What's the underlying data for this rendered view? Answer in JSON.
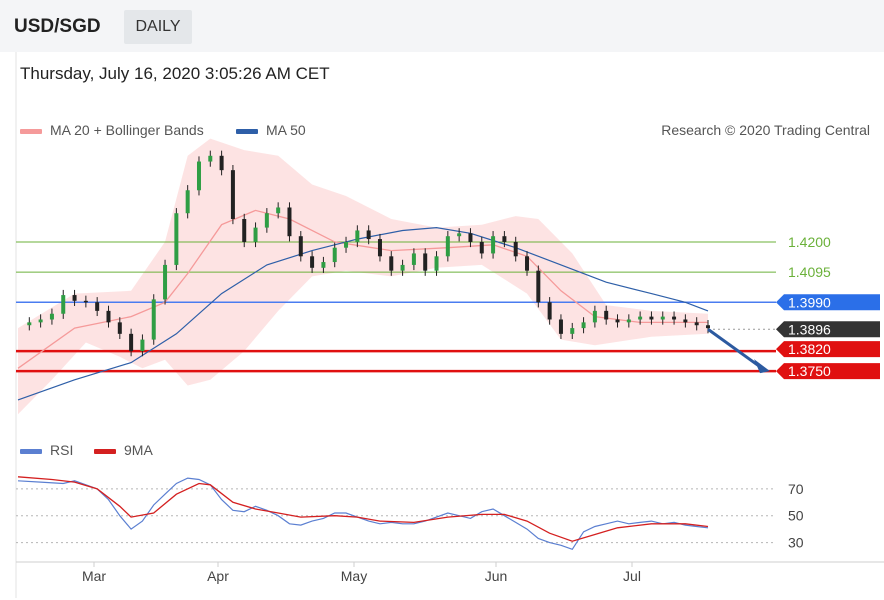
{
  "header": {
    "symbol": "USD/SGD",
    "timeframe": "DAILY"
  },
  "timestamp": "Thursday, July 16, 2020 3:05:26 AM CET",
  "legend": {
    "ma20": "MA 20 + Bollinger Bands",
    "ma50": "MA 50",
    "credit": "Research © 2020 Trading Central"
  },
  "colors": {
    "bb": "#f59a9a",
    "bb_fill": "#fde0e0",
    "ma50": "#2e5fa8",
    "rsi": "#5b7fd1",
    "nine_ma": "#d42020",
    "green": "#6bb13a",
    "blue_line": "#4a7cf0",
    "red_line": "#e01010",
    "price_box": "#333333",
    "arrow": "#2c5aa0"
  },
  "chart_data": [
    {
      "type": "candlestick",
      "title": "USD/SGD",
      "x_labels": [
        "Mar",
        "Apr",
        "May",
        "Jun",
        "Jul"
      ],
      "ylim": [
        1.358,
        1.4555
      ],
      "levels": [
        {
          "value": 1.42,
          "label": "1.4200",
          "color": "#6bb13a"
        },
        {
          "value": 1.4095,
          "label": "1.4095",
          "color": "#6bb13a"
        },
        {
          "value": 1.399,
          "label": "1.3990",
          "color": "#2b6fe8"
        },
        {
          "value": 1.3896,
          "label": "1.3896",
          "color": "#333333"
        },
        {
          "value": 1.382,
          "label": "1.3820",
          "color": "#e01010"
        },
        {
          "value": 1.375,
          "label": "1.3750",
          "color": "#e01010"
        }
      ],
      "close_series": [
        {
          "t": 0,
          "c": 1.391
        },
        {
          "t": 2,
          "c": 1.392
        },
        {
          "t": 4,
          "c": 1.393
        },
        {
          "t": 6,
          "c": 1.395
        },
        {
          "t": 8,
          "c": 1.4015
        },
        {
          "t": 10,
          "c": 1.3995
        },
        {
          "t": 12,
          "c": 1.399
        },
        {
          "t": 14,
          "c": 1.396
        },
        {
          "t": 16,
          "c": 1.392
        },
        {
          "t": 18,
          "c": 1.388
        },
        {
          "t": 20,
          "c": 1.382
        },
        {
          "t": 22,
          "c": 1.386
        },
        {
          "t": 24,
          "c": 1.4
        },
        {
          "t": 26,
          "c": 1.412
        },
        {
          "t": 28,
          "c": 1.43
        },
        {
          "t": 30,
          "c": 1.438
        },
        {
          "t": 32,
          "c": 1.448
        },
        {
          "t": 34,
          "c": 1.45
        },
        {
          "t": 36,
          "c": 1.445
        },
        {
          "t": 38,
          "c": 1.428
        },
        {
          "t": 40,
          "c": 1.42
        },
        {
          "t": 42,
          "c": 1.425
        },
        {
          "t": 44,
          "c": 1.43
        },
        {
          "t": 46,
          "c": 1.432
        },
        {
          "t": 48,
          "c": 1.422
        },
        {
          "t": 50,
          "c": 1.415
        },
        {
          "t": 52,
          "c": 1.411
        },
        {
          "t": 54,
          "c": 1.413
        },
        {
          "t": 56,
          "c": 1.418
        },
        {
          "t": 58,
          "c": 1.42
        },
        {
          "t": 60,
          "c": 1.424
        },
        {
          "t": 62,
          "c": 1.421
        },
        {
          "t": 64,
          "c": 1.415
        },
        {
          "t": 66,
          "c": 1.41
        },
        {
          "t": 68,
          "c": 1.412
        },
        {
          "t": 70,
          "c": 1.416
        },
        {
          "t": 72,
          "c": 1.41
        },
        {
          "t": 74,
          "c": 1.415
        },
        {
          "t": 76,
          "c": 1.422
        },
        {
          "t": 78,
          "c": 1.423
        },
        {
          "t": 80,
          "c": 1.42
        },
        {
          "t": 82,
          "c": 1.416
        },
        {
          "t": 84,
          "c": 1.422
        },
        {
          "t": 86,
          "c": 1.42
        },
        {
          "t": 88,
          "c": 1.415
        },
        {
          "t": 90,
          "c": 1.41
        },
        {
          "t": 92,
          "c": 1.399
        },
        {
          "t": 94,
          "c": 1.393
        },
        {
          "t": 96,
          "c": 1.388
        },
        {
          "t": 98,
          "c": 1.39
        },
        {
          "t": 100,
          "c": 1.392
        },
        {
          "t": 102,
          "c": 1.396
        },
        {
          "t": 104,
          "c": 1.393
        },
        {
          "t": 106,
          "c": 1.392
        },
        {
          "t": 108,
          "c": 1.393
        },
        {
          "t": 110,
          "c": 1.394
        },
        {
          "t": 112,
          "c": 1.393
        },
        {
          "t": 114,
          "c": 1.394
        },
        {
          "t": 116,
          "c": 1.393
        },
        {
          "t": 118,
          "c": 1.392
        },
        {
          "t": 120,
          "c": 1.391
        },
        {
          "t": 122,
          "c": 1.39
        }
      ],
      "ma20": [
        {
          "t": 0,
          "v": 1.376
        },
        {
          "t": 10,
          "v": 1.39
        },
        {
          "t": 20,
          "v": 1.394
        },
        {
          "t": 26,
          "v": 1.399
        },
        {
          "t": 30,
          "v": 1.409
        },
        {
          "t": 36,
          "v": 1.426
        },
        {
          "t": 42,
          "v": 1.431
        },
        {
          "t": 48,
          "v": 1.428
        },
        {
          "t": 56,
          "v": 1.42
        },
        {
          "t": 66,
          "v": 1.417
        },
        {
          "t": 76,
          "v": 1.418
        },
        {
          "t": 84,
          "v": 1.419
        },
        {
          "t": 90,
          "v": 1.415
        },
        {
          "t": 96,
          "v": 1.403
        },
        {
          "t": 102,
          "v": 1.394
        },
        {
          "t": 110,
          "v": 1.392
        },
        {
          "t": 122,
          "v": 1.392
        }
      ],
      "bb_upper": [
        {
          "t": 0,
          "v": 1.39
        },
        {
          "t": 10,
          "v": 1.402
        },
        {
          "t": 20,
          "v": 1.403
        },
        {
          "t": 26,
          "v": 1.42
        },
        {
          "t": 30,
          "v": 1.45
        },
        {
          "t": 34,
          "v": 1.456
        },
        {
          "t": 40,
          "v": 1.452
        },
        {
          "t": 46,
          "v": 1.45
        },
        {
          "t": 52,
          "v": 1.44
        },
        {
          "t": 58,
          "v": 1.436
        },
        {
          "t": 66,
          "v": 1.428
        },
        {
          "t": 74,
          "v": 1.425
        },
        {
          "t": 82,
          "v": 1.426
        },
        {
          "t": 88,
          "v": 1.429
        },
        {
          "t": 92,
          "v": 1.428
        },
        {
          "t": 98,
          "v": 1.416
        },
        {
          "t": 104,
          "v": 1.398
        },
        {
          "t": 112,
          "v": 1.396
        },
        {
          "t": 122,
          "v": 1.395
        }
      ],
      "bb_lower": [
        {
          "t": 0,
          "v": 1.36
        },
        {
          "t": 6,
          "v": 1.372
        },
        {
          "t": 12,
          "v": 1.385
        },
        {
          "t": 18,
          "v": 1.38
        },
        {
          "t": 22,
          "v": 1.376
        },
        {
          "t": 26,
          "v": 1.379
        },
        {
          "t": 30,
          "v": 1.37
        },
        {
          "t": 34,
          "v": 1.372
        },
        {
          "t": 40,
          "v": 1.382
        },
        {
          "t": 46,
          "v": 1.396
        },
        {
          "t": 52,
          "v": 1.408
        },
        {
          "t": 58,
          "v": 1.41
        },
        {
          "t": 66,
          "v": 1.408
        },
        {
          "t": 74,
          "v": 1.411
        },
        {
          "t": 82,
          "v": 1.412
        },
        {
          "t": 90,
          "v": 1.402
        },
        {
          "t": 96,
          "v": 1.386
        },
        {
          "t": 102,
          "v": 1.384
        },
        {
          "t": 112,
          "v": 1.387
        },
        {
          "t": 122,
          "v": 1.388
        }
      ],
      "ma50": [
        {
          "t": 0,
          "v": 1.365
        },
        {
          "t": 10,
          "v": 1.372
        },
        {
          "t": 20,
          "v": 1.378
        },
        {
          "t": 28,
          "v": 1.388
        },
        {
          "t": 36,
          "v": 1.402
        },
        {
          "t": 44,
          "v": 1.412
        },
        {
          "t": 52,
          "v": 1.417
        },
        {
          "t": 60,
          "v": 1.421
        },
        {
          "t": 68,
          "v": 1.424
        },
        {
          "t": 74,
          "v": 1.425
        },
        {
          "t": 80,
          "v": 1.423
        },
        {
          "t": 88,
          "v": 1.418
        },
        {
          "t": 96,
          "v": 1.412
        },
        {
          "t": 104,
          "v": 1.406
        },
        {
          "t": 112,
          "v": 1.402
        },
        {
          "t": 118,
          "v": 1.399
        },
        {
          "t": 122,
          "v": 1.396
        }
      ],
      "forecast": {
        "from": 1.3896,
        "to": 1.375
      }
    },
    {
      "type": "line",
      "series_labels": [
        "RSI",
        "9MA"
      ],
      "yticks": [
        30,
        50,
        70
      ],
      "ylim": [
        20,
        90
      ],
      "rsi": [
        {
          "t": 0,
          "v": 76
        },
        {
          "t": 4,
          "v": 75
        },
        {
          "t": 8,
          "v": 74
        },
        {
          "t": 10,
          "v": 76
        },
        {
          "t": 12,
          "v": 73
        },
        {
          "t": 14,
          "v": 70
        },
        {
          "t": 16,
          "v": 62
        },
        {
          "t": 18,
          "v": 50
        },
        {
          "t": 20,
          "v": 40
        },
        {
          "t": 22,
          "v": 46
        },
        {
          "t": 24,
          "v": 58
        },
        {
          "t": 26,
          "v": 66
        },
        {
          "t": 28,
          "v": 74
        },
        {
          "t": 30,
          "v": 78
        },
        {
          "t": 32,
          "v": 77
        },
        {
          "t": 34,
          "v": 73
        },
        {
          "t": 36,
          "v": 62
        },
        {
          "t": 38,
          "v": 54
        },
        {
          "t": 40,
          "v": 53
        },
        {
          "t": 42,
          "v": 57
        },
        {
          "t": 44,
          "v": 54
        },
        {
          "t": 46,
          "v": 50
        },
        {
          "t": 48,
          "v": 44
        },
        {
          "t": 50,
          "v": 43
        },
        {
          "t": 52,
          "v": 46
        },
        {
          "t": 54,
          "v": 48
        },
        {
          "t": 56,
          "v": 52
        },
        {
          "t": 58,
          "v": 52
        },
        {
          "t": 60,
          "v": 49
        },
        {
          "t": 62,
          "v": 46
        },
        {
          "t": 64,
          "v": 44
        },
        {
          "t": 66,
          "v": 45
        },
        {
          "t": 68,
          "v": 44
        },
        {
          "t": 70,
          "v": 44
        },
        {
          "t": 72,
          "v": 46
        },
        {
          "t": 74,
          "v": 49
        },
        {
          "t": 76,
          "v": 52
        },
        {
          "t": 78,
          "v": 50
        },
        {
          "t": 80,
          "v": 48
        },
        {
          "t": 82,
          "v": 53
        },
        {
          "t": 84,
          "v": 55
        },
        {
          "t": 86,
          "v": 50
        },
        {
          "t": 88,
          "v": 45
        },
        {
          "t": 90,
          "v": 40
        },
        {
          "t": 92,
          "v": 33
        },
        {
          "t": 94,
          "v": 30
        },
        {
          "t": 96,
          "v": 28
        },
        {
          "t": 98,
          "v": 25
        },
        {
          "t": 100,
          "v": 38
        },
        {
          "t": 102,
          "v": 42
        },
        {
          "t": 104,
          "v": 44
        },
        {
          "t": 106,
          "v": 46
        },
        {
          "t": 108,
          "v": 44
        },
        {
          "t": 110,
          "v": 45
        },
        {
          "t": 112,
          "v": 46
        },
        {
          "t": 114,
          "v": 44
        },
        {
          "t": 116,
          "v": 45
        },
        {
          "t": 118,
          "v": 43
        },
        {
          "t": 120,
          "v": 42
        },
        {
          "t": 122,
          "v": 41
        }
      ],
      "nine_ma": [
        {
          "t": 0,
          "v": 79
        },
        {
          "t": 6,
          "v": 77
        },
        {
          "t": 10,
          "v": 75
        },
        {
          "t": 14,
          "v": 70
        },
        {
          "t": 18,
          "v": 57
        },
        {
          "t": 20,
          "v": 49
        },
        {
          "t": 24,
          "v": 52
        },
        {
          "t": 28,
          "v": 66
        },
        {
          "t": 32,
          "v": 74
        },
        {
          "t": 34,
          "v": 73
        },
        {
          "t": 38,
          "v": 60
        },
        {
          "t": 42,
          "v": 55
        },
        {
          "t": 46,
          "v": 52
        },
        {
          "t": 50,
          "v": 49
        },
        {
          "t": 56,
          "v": 50
        },
        {
          "t": 60,
          "v": 49
        },
        {
          "t": 64,
          "v": 46
        },
        {
          "t": 70,
          "v": 45
        },
        {
          "t": 76,
          "v": 49
        },
        {
          "t": 82,
          "v": 51
        },
        {
          "t": 86,
          "v": 51
        },
        {
          "t": 90,
          "v": 46
        },
        {
          "t": 94,
          "v": 37
        },
        {
          "t": 98,
          "v": 31
        },
        {
          "t": 102,
          "v": 36
        },
        {
          "t": 106,
          "v": 41
        },
        {
          "t": 112,
          "v": 44
        },
        {
          "t": 118,
          "v": 44
        },
        {
          "t": 122,
          "v": 42
        }
      ]
    }
  ]
}
